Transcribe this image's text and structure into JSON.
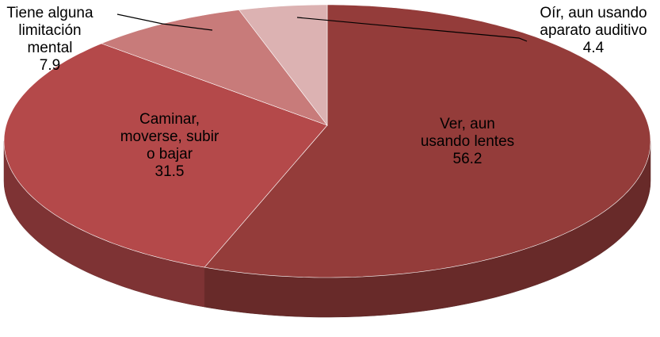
{
  "chart_data": {
    "type": "pie3d",
    "categories": [
      "Ver, aun usando lentes",
      "Caminar, moverse, subir o bajar",
      "Tiene alguna limitación mental",
      "Oír, aun usando aparato auditivo"
    ],
    "values": [
      56.2,
      31.5,
      7.9,
      4.4
    ],
    "colors": [
      "#943c3a",
      "#b4494a",
      "#c87b7a",
      "#dcb2b2"
    ]
  }
}
